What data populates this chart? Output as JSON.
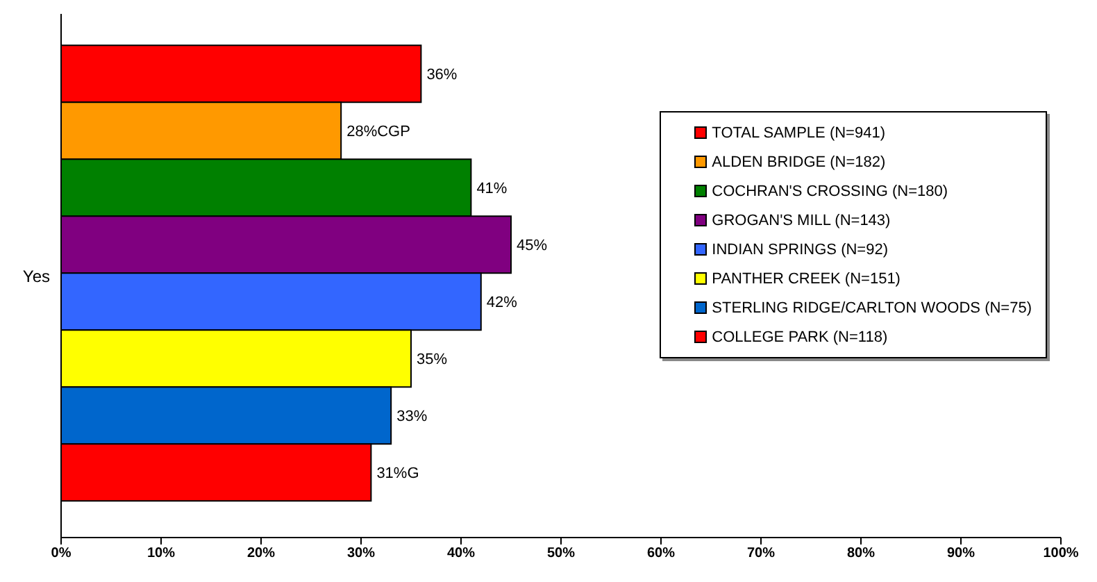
{
  "chart_data": {
    "type": "bar",
    "orientation": "horizontal",
    "categories": [
      "Yes"
    ],
    "series": [
      {
        "name": "TOTAL SAMPLE (N=941)",
        "color": "#ff0000",
        "values": [
          36
        ],
        "value_labels": [
          "36%"
        ]
      },
      {
        "name": "ALDEN BRIDGE (N=182)",
        "color": "#ff9900",
        "values": [
          28
        ],
        "value_labels": [
          "28%CGP"
        ]
      },
      {
        "name": "COCHRAN'S CROSSING (N=180)",
        "color": "#008000",
        "values": [
          41
        ],
        "value_labels": [
          "41%"
        ]
      },
      {
        "name": "GROGAN'S MILL (N=143)",
        "color": "#800080",
        "values": [
          45
        ],
        "value_labels": [
          "45%"
        ]
      },
      {
        "name": "INDIAN SPRINGS (N=92)",
        "color": "#3366ff",
        "values": [
          42
        ],
        "value_labels": [
          "42%"
        ]
      },
      {
        "name": "PANTHER CREEK (N=151)",
        "color": "#ffff00",
        "values": [
          35
        ],
        "value_labels": [
          "35%"
        ]
      },
      {
        "name": "STERLING RIDGE/CARLTON WOODS (N=75)",
        "color": "#0066cc",
        "values": [
          33
        ],
        "value_labels": [
          "33%"
        ]
      },
      {
        "name": "COLLEGE PARK (N=118)",
        "color": "#ff0000",
        "values": [
          31
        ],
        "value_labels": [
          "31%G"
        ]
      }
    ],
    "xlim": [
      0,
      100
    ],
    "xticks": [
      {
        "value": 0,
        "label": "0%"
      },
      {
        "value": 10,
        "label": "10%"
      },
      {
        "value": 20,
        "label": "20%"
      },
      {
        "value": 30,
        "label": "30%"
      },
      {
        "value": 40,
        "label": "40%"
      },
      {
        "value": 50,
        "label": "50%"
      },
      {
        "value": 60,
        "label": "60%"
      },
      {
        "value": 70,
        "label": "70%"
      },
      {
        "value": 80,
        "label": "80%"
      },
      {
        "value": 90,
        "label": "90%"
      },
      {
        "value": 100,
        "label": "100%"
      }
    ],
    "grid": false,
    "legend": "right"
  }
}
